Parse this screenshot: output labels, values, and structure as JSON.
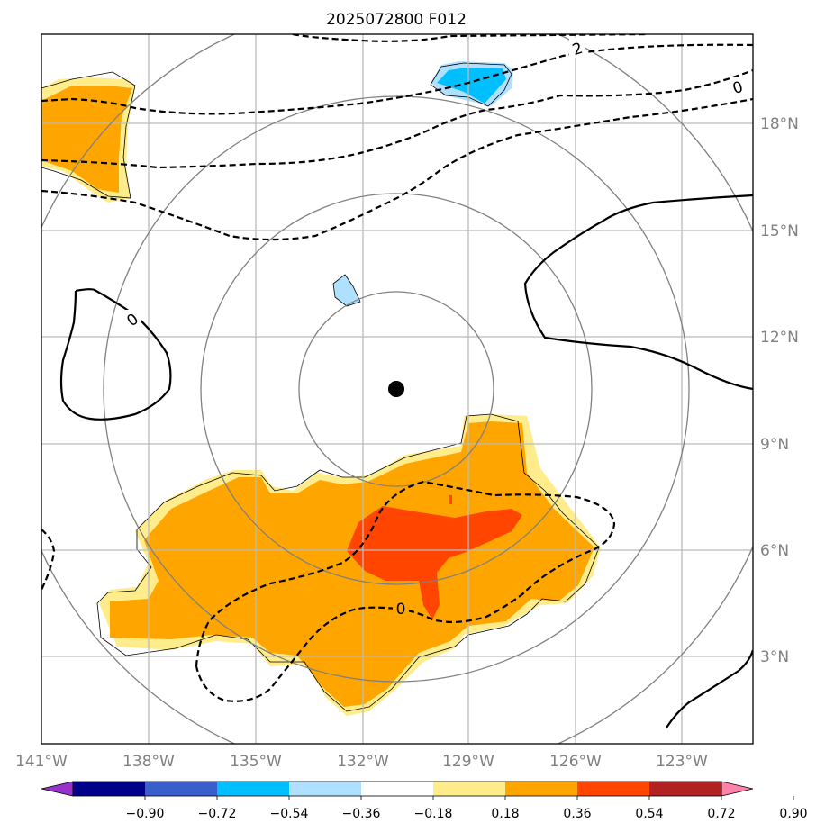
{
  "title": "2025072800 F012",
  "longitude_labels": [
    "141°W",
    "138°W",
    "135°W",
    "132°W",
    "129°W",
    "126°W",
    "123°W"
  ],
  "latitude_labels": [
    "18°N",
    "15°N",
    "12°N",
    "9°N",
    "6°N",
    "3°N"
  ],
  "contour_labels": [
    "2",
    "0",
    "0",
    "0"
  ],
  "colorbar": {
    "ticks": [
      "−0.90",
      "−0.72",
      "−0.54",
      "−0.36",
      "−0.18",
      "0.18",
      "0.36",
      "0.54",
      "0.72",
      "0.90"
    ],
    "colors": [
      "#9932CC",
      "#00008B",
      "#3A5FCD",
      "#00BFFF",
      "#B0E0FF",
      "#FFFFFF",
      "#FFEC8B",
      "#FFA500",
      "#FF4500",
      "#B22222",
      "#FF82AB"
    ]
  },
  "storm_center": "black dot at about 10.5°N, 131°W"
}
